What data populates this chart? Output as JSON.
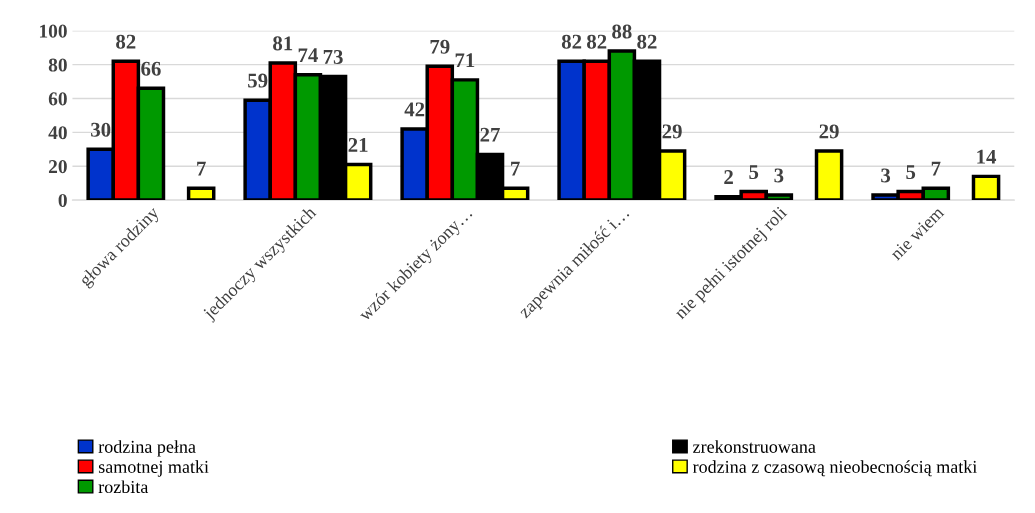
{
  "chart_data": {
    "type": "bar",
    "categories": [
      "głowa rodziny",
      "jednoczy wszystkich",
      "wzór kobiety żony…",
      "zapewnia miłość i…",
      "nie pełni istotnej roli",
      "nie wiem"
    ],
    "series": [
      {
        "name": "rodzina pełna",
        "color": "#0033cc",
        "values": [
          30,
          59,
          42,
          82,
          2,
          3
        ]
      },
      {
        "name": "samotnej matki",
        "color": "#ff0000",
        "values": [
          82,
          81,
          79,
          82,
          5,
          5
        ]
      },
      {
        "name": "rozbita",
        "color": "#009900",
        "values": [
          66,
          74,
          71,
          88,
          3,
          7
        ]
      },
      {
        "name": "zrekonstruowana",
        "color": "#000000",
        "values": [
          null,
          73,
          27,
          82,
          null,
          null
        ]
      },
      {
        "name": "rodzina z czasową nieobecnością matki",
        "color": "#ffff00",
        "values": [
          7,
          21,
          7,
          29,
          29,
          14
        ]
      }
    ],
    "ylim": [
      0,
      100
    ],
    "yticks": [
      0,
      20,
      40,
      60,
      80,
      100
    ],
    "grid": "y",
    "legend": "bottom",
    "data_labels": true
  }
}
